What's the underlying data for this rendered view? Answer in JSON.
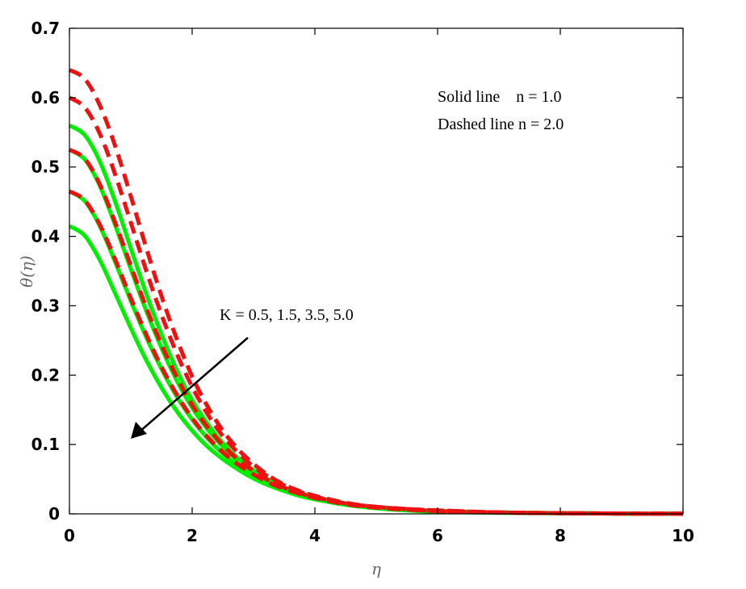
{
  "chart_data": {
    "type": "line",
    "xlabel": "η",
    "ylabel": "θ(η)",
    "xlim": [
      0,
      10
    ],
    "ylim": [
      0,
      0.7
    ],
    "xticks": [
      "0",
      "2",
      "4",
      "6",
      "8",
      "10"
    ],
    "yticks": [
      "0",
      "0.1",
      "0.2",
      "0.3",
      "0.4",
      "0.5",
      "0.6",
      "0.7"
    ],
    "grid": false,
    "colors": {
      "solid": "#00ee00",
      "dashed": "#ee1111",
      "arrow": "#000000"
    },
    "legend_text": [
      "Solid line    n = 1.0",
      "Dashed line n = 2.0"
    ],
    "annotation": "K = 0.5, 1.5, 3.5, 5.0",
    "x": [
      0,
      0.25,
      0.5,
      0.75,
      1,
      1.25,
      1.5,
      1.75,
      2,
      2.25,
      2.5,
      2.75,
      3,
      3.25,
      3.5,
      3.75,
      4,
      4.5,
      5,
      5.5,
      6,
      7,
      8,
      9,
      10
    ],
    "series": [
      {
        "style": "solid",
        "values": [
          0.56,
          0.546,
          0.507,
          0.449,
          0.383,
          0.318,
          0.259,
          0.207,
          0.164,
          0.13,
          0.102,
          0.08,
          0.063,
          0.049,
          0.038,
          0.03,
          0.024,
          0.015,
          0.009,
          0.006,
          0.004,
          0.002,
          0.001,
          0.0005,
          0.0002
        ]
      },
      {
        "style": "solid",
        "values": [
          0.525,
          0.511,
          0.472,
          0.415,
          0.353,
          0.293,
          0.239,
          0.192,
          0.153,
          0.122,
          0.097,
          0.077,
          0.061,
          0.048,
          0.037,
          0.029,
          0.023,
          0.014,
          0.009,
          0.006,
          0.004,
          0.002,
          0.001,
          0.0005,
          0.0002
        ]
      },
      {
        "style": "solid",
        "values": [
          0.465,
          0.451,
          0.414,
          0.362,
          0.307,
          0.255,
          0.209,
          0.169,
          0.136,
          0.109,
          0.087,
          0.07,
          0.056,
          0.044,
          0.035,
          0.028,
          0.022,
          0.014,
          0.009,
          0.006,
          0.004,
          0.002,
          0.001,
          0.0005,
          0.0002
        ]
      },
      {
        "style": "solid",
        "values": [
          0.415,
          0.401,
          0.365,
          0.317,
          0.268,
          0.222,
          0.182,
          0.148,
          0.12,
          0.097,
          0.079,
          0.064,
          0.051,
          0.041,
          0.033,
          0.026,
          0.021,
          0.013,
          0.008,
          0.005,
          0.003,
          0.0015,
          0.0008,
          0.0004,
          0.0002
        ]
      },
      {
        "style": "dashed",
        "values": [
          0.64,
          0.627,
          0.588,
          0.529,
          0.458,
          0.384,
          0.314,
          0.252,
          0.198,
          0.155,
          0.12,
          0.093,
          0.072,
          0.055,
          0.042,
          0.033,
          0.026,
          0.016,
          0.01,
          0.007,
          0.005,
          0.002,
          0.001,
          0.0005,
          0.0002
        ]
      },
      {
        "style": "dashed",
        "values": [
          0.6,
          0.586,
          0.547,
          0.488,
          0.42,
          0.351,
          0.287,
          0.231,
          0.183,
          0.144,
          0.112,
          0.088,
          0.068,
          0.053,
          0.041,
          0.032,
          0.025,
          0.015,
          0.01,
          0.007,
          0.005,
          0.002,
          0.001,
          0.0005,
          0.0002
        ]
      },
      {
        "style": "dashed",
        "values": [
          0.525,
          0.512,
          0.474,
          0.419,
          0.358,
          0.298,
          0.244,
          0.197,
          0.157,
          0.125,
          0.099,
          0.078,
          0.062,
          0.048,
          0.038,
          0.03,
          0.024,
          0.015,
          0.01,
          0.007,
          0.004,
          0.002,
          0.001,
          0.0005,
          0.0002
        ]
      },
      {
        "style": "dashed",
        "values": [
          0.465,
          0.452,
          0.416,
          0.366,
          0.311,
          0.259,
          0.212,
          0.172,
          0.138,
          0.111,
          0.089,
          0.071,
          0.057,
          0.045,
          0.036,
          0.029,
          0.023,
          0.014,
          0.009,
          0.006,
          0.004,
          0.002,
          0.001,
          0.0005,
          0.0002
        ]
      }
    ]
  }
}
